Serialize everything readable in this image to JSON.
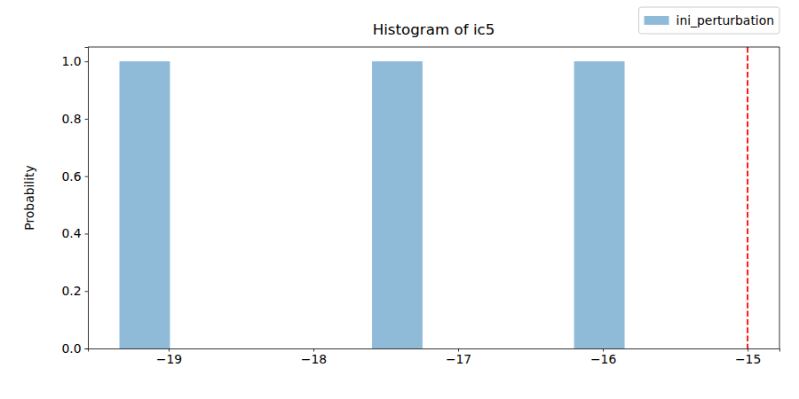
{
  "chart_data": {
    "type": "histogram",
    "title": "Histogram of ic5",
    "y_label": "Probability",
    "bins": [
      -19.34,
      -18.991,
      -18.642,
      -18.293,
      -17.944,
      -17.595,
      -17.246,
      -16.897,
      -16.548,
      -16.199,
      -15.85
    ],
    "series": [
      {
        "name": "ini_perturbation",
        "color": "#1f77b4",
        "values": [
          1,
          0,
          0,
          0,
          0,
          1,
          0,
          0,
          0,
          1
        ]
      }
    ],
    "xlim": [
      -19.558,
      -14.78
    ],
    "xticks": [
      {
        "value": -19,
        "label": "−19"
      },
      {
        "value": -18,
        "label": "−18"
      },
      {
        "value": -17,
        "label": "−17"
      },
      {
        "value": -16,
        "label": "−16"
      },
      {
        "value": -15,
        "label": "−15"
      }
    ],
    "ylim": [
      0,
      1.05
    ],
    "yticks": [
      {
        "value": 0,
        "label": "0.0"
      },
      0.2,
      0.4,
      0.6,
      0.8,
      {
        "value": 1,
        "label": "1.0"
      }
    ],
    "vline": {
      "value": -15,
      "color": "#ff0000",
      "line_style": "dashed"
    },
    "legend": "upper right",
    "grid": false
  }
}
